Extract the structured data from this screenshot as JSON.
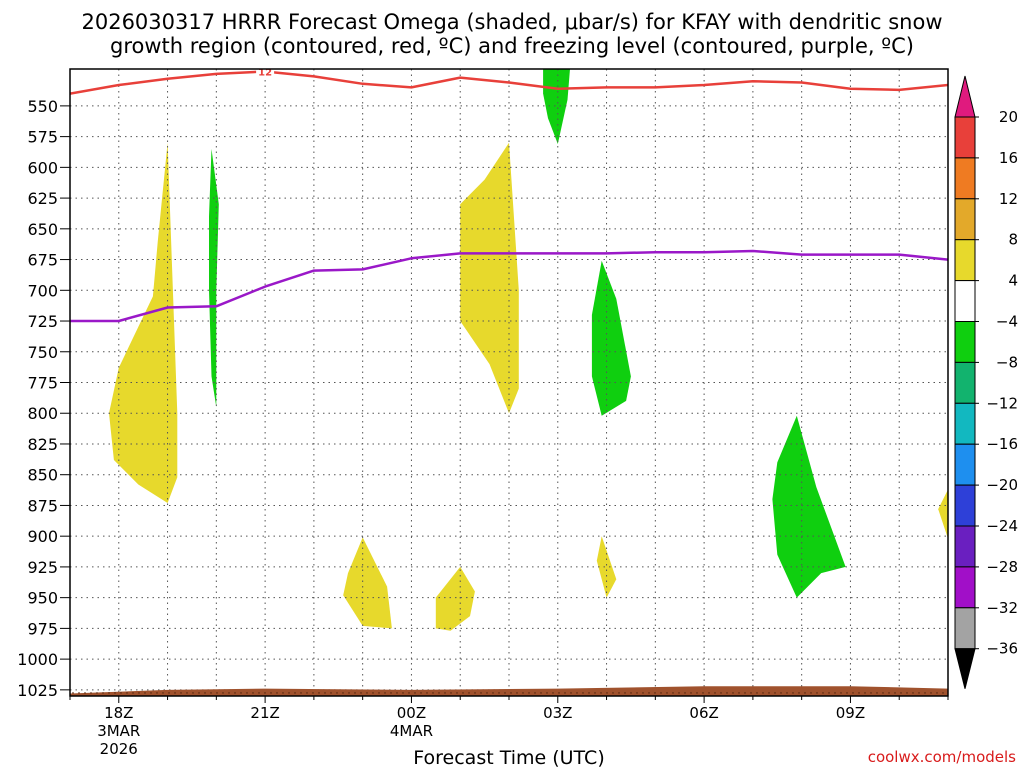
{
  "chart_data": {
    "type": "heatmap",
    "title_line1": "2026030317 HRRR Forecast Omega (shaded, μbar/s) for KFAY with dendritic snow",
    "title_line2": "growth region (contoured, red, ºC) and freezing level (contoured, purple, ºC)",
    "xlabel": "Forecast Time (UTC)",
    "credit": "coolwx.com/models",
    "y_axis": {
      "unit": "hPa",
      "range": [
        520,
        1030
      ],
      "ticks": [
        550,
        575,
        600,
        625,
        650,
        675,
        700,
        725,
        750,
        775,
        800,
        825,
        850,
        875,
        900,
        925,
        950,
        975,
        1000,
        1025
      ]
    },
    "x_axis": {
      "range_hours": [
        -1,
        17
      ],
      "ticks": [
        {
          "hour": 0,
          "label": "18Z",
          "sub1": "3MAR",
          "sub2": "2026"
        },
        {
          "hour": 3,
          "label": "21Z",
          "sub1": "",
          "sub2": ""
        },
        {
          "hour": 6,
          "label": "00Z",
          "sub1": "4MAR",
          "sub2": ""
        },
        {
          "hour": 9,
          "label": "03Z",
          "sub1": "",
          "sub2": ""
        },
        {
          "hour": 12,
          "label": "06Z",
          "sub1": "",
          "sub2": ""
        },
        {
          "hour": 15,
          "label": "09Z",
          "sub1": "",
          "sub2": ""
        }
      ]
    },
    "colorbar": {
      "levels": [
        "20",
        "16",
        "12",
        "8",
        "4",
        "−4",
        "−8",
        "−12",
        "−16",
        "−20",
        "−24",
        "−28",
        "−32",
        "−36"
      ],
      "colors": [
        "#e8403a",
        "#ef7b22",
        "#e3a92a",
        "#e7d92c",
        "#ffffff",
        "#0fcf0f",
        "#12b36e",
        "#12b8c0",
        "#1e8fef",
        "#2e40d8",
        "#6a1fc0",
        "#a10fc8",
        "#a3a3a3"
      ],
      "top_arrow_color": "#e01a7e",
      "bottom_arrow_color": "#000000"
    },
    "series": [
      {
        "name": "DGZ contour (red)",
        "color": "#e8403a",
        "label": "12",
        "points": [
          [
            -1,
            540
          ],
          [
            0,
            533
          ],
          [
            1,
            528
          ],
          [
            2,
            524
          ],
          [
            3,
            522
          ],
          [
            4,
            526
          ],
          [
            5,
            532
          ],
          [
            6,
            535
          ],
          [
            7,
            527
          ],
          [
            8,
            531
          ],
          [
            9,
            536
          ],
          [
            10,
            535
          ],
          [
            11,
            535
          ],
          [
            12,
            533
          ],
          [
            13,
            530
          ],
          [
            14,
            531
          ],
          [
            15,
            536
          ],
          [
            16,
            537
          ],
          [
            17,
            533
          ]
        ]
      },
      {
        "name": "Freezing level (purple)",
        "color": "#9a18c8",
        "points": [
          [
            -1,
            725
          ],
          [
            0,
            725
          ],
          [
            1,
            714
          ],
          [
            2,
            713
          ],
          [
            3,
            697
          ],
          [
            4,
            684
          ],
          [
            5,
            683
          ],
          [
            6,
            674
          ],
          [
            7,
            670
          ],
          [
            8,
            670
          ],
          [
            9,
            670
          ],
          [
            10,
            670
          ],
          [
            11,
            669
          ],
          [
            12,
            669
          ],
          [
            13,
            668
          ],
          [
            14,
            671
          ],
          [
            15,
            671
          ],
          [
            16,
            671
          ],
          [
            17,
            675
          ]
        ]
      }
    ],
    "omega_regions": [
      {
        "name": "positive-omega-area",
        "color": "#e7d92c",
        "points": [
          [
            -0.2,
            800
          ],
          [
            0,
            763
          ],
          [
            0.7,
            705
          ],
          [
            0.8,
            660
          ],
          [
            1.0,
            580
          ],
          [
            1.2,
            800
          ],
          [
            1.2,
            852
          ],
          [
            1.0,
            873
          ],
          [
            0.4,
            858
          ],
          [
            -0.1,
            838
          ]
        ]
      },
      {
        "name": "negative-omega-area",
        "color": "#0fcf0f",
        "points": [
          [
            1.9,
            585
          ],
          [
            2.05,
            630
          ],
          [
            2.0,
            700
          ],
          [
            2.0,
            795
          ],
          [
            1.9,
            770
          ],
          [
            1.85,
            700
          ],
          [
            1.85,
            640
          ]
        ]
      },
      {
        "name": "positive-omega-area",
        "color": "#e7d92c",
        "points": [
          [
            5.0,
            901
          ],
          [
            5.5,
            941
          ],
          [
            5.6,
            975
          ],
          [
            5.0,
            973
          ],
          [
            4.6,
            948
          ],
          [
            4.7,
            930
          ]
        ]
      },
      {
        "name": "positive-omega-area",
        "color": "#e7d92c",
        "points": [
          [
            7.0,
            925
          ],
          [
            7.3,
            945
          ],
          [
            7.2,
            965
          ],
          [
            6.8,
            977
          ],
          [
            6.5,
            975
          ],
          [
            6.5,
            950
          ]
        ]
      },
      {
        "name": "positive-omega-area",
        "color": "#e7d92c",
        "points": [
          [
            8.0,
            580
          ],
          [
            8.2,
            700
          ],
          [
            8.2,
            780
          ],
          [
            8.0,
            800
          ],
          [
            7.6,
            760
          ],
          [
            7.0,
            725
          ],
          [
            7.0,
            630
          ],
          [
            7.5,
            610
          ]
        ]
      },
      {
        "name": "negative-omega-area",
        "color": "#0fcf0f",
        "points": [
          [
            8.7,
            520
          ],
          [
            9.25,
            520
          ],
          [
            9.2,
            545
          ],
          [
            9.0,
            581
          ],
          [
            8.8,
            560
          ],
          [
            8.7,
            540
          ]
        ]
      },
      {
        "name": "negative-omega-area",
        "color": "#0fcf0f",
        "points": [
          [
            9.9,
            676
          ],
          [
            10.2,
            707
          ],
          [
            10.5,
            770
          ],
          [
            10.4,
            790
          ],
          [
            9.9,
            802
          ],
          [
            9.7,
            770
          ],
          [
            9.7,
            720
          ]
        ]
      },
      {
        "name": "positive-omega-area",
        "color": "#e7d92c",
        "points": [
          [
            9.9,
            900
          ],
          [
            10.2,
            935
          ],
          [
            10.0,
            950
          ],
          [
            9.8,
            920
          ]
        ]
      },
      {
        "name": "negative-omega-area",
        "color": "#0fcf0f",
        "points": [
          [
            13.9,
            802
          ],
          [
            14.3,
            860
          ],
          [
            14.9,
            925
          ],
          [
            14.4,
            930
          ],
          [
            13.9,
            950
          ],
          [
            13.5,
            915
          ],
          [
            13.4,
            870
          ],
          [
            13.5,
            840
          ]
        ]
      },
      {
        "name": "positive-omega-area",
        "color": "#e7d92c",
        "points": [
          [
            17.0,
            862
          ],
          [
            17.0,
            902
          ],
          [
            16.8,
            878
          ]
        ]
      }
    ],
    "ground": {
      "name": "terrain",
      "color": "#a0522d",
      "points": [
        [
          -1,
          1028
        ],
        [
          1,
          1025
        ],
        [
          3,
          1024
        ],
        [
          6,
          1025
        ],
        [
          9,
          1024
        ],
        [
          12,
          1022
        ],
        [
          15,
          1022
        ],
        [
          17,
          1024
        ],
        [
          17,
          1030
        ],
        [
          -1,
          1030
        ]
      ]
    }
  }
}
